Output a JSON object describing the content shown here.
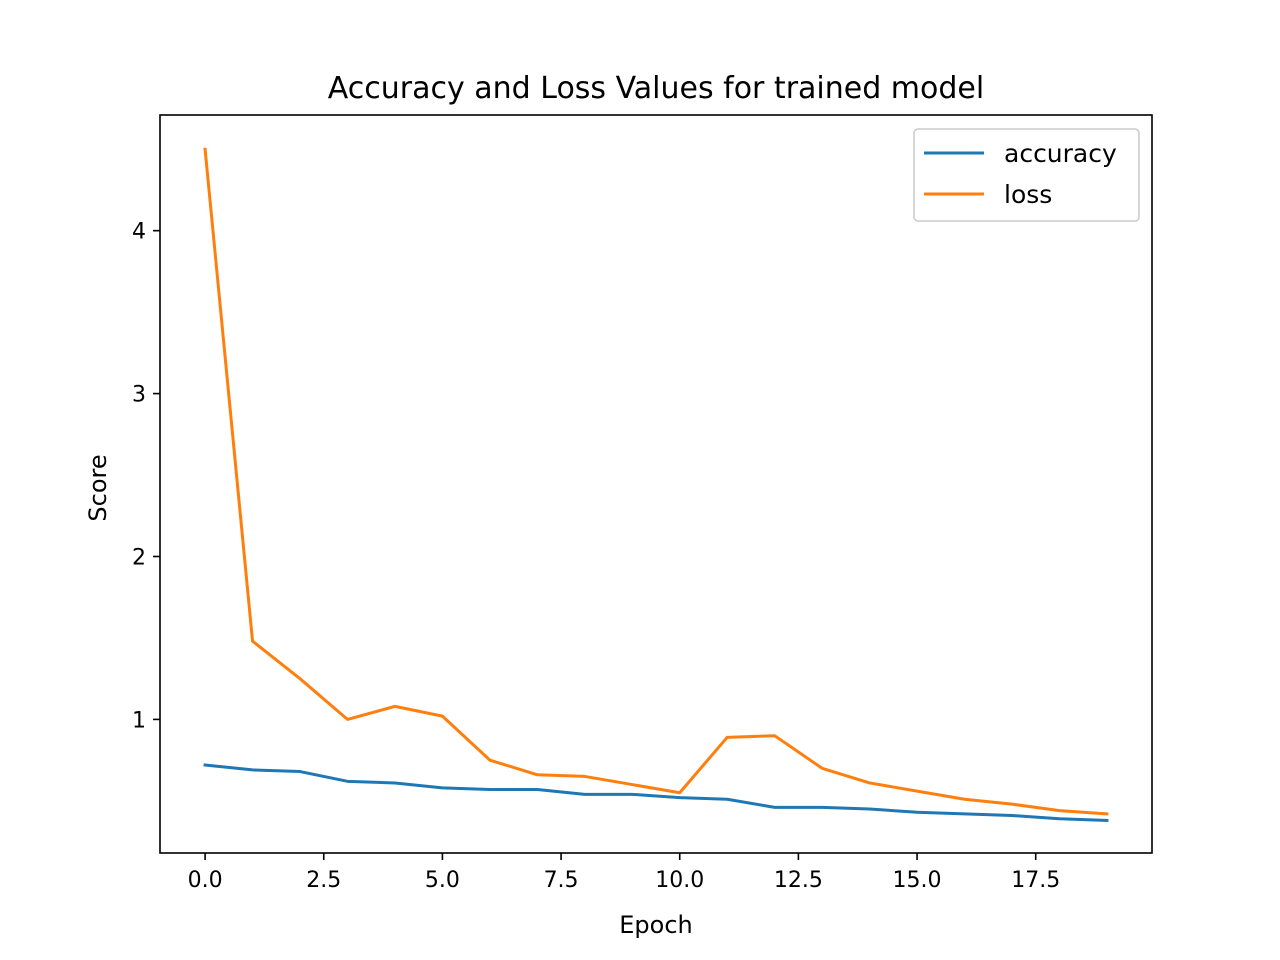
{
  "chart_data": {
    "type": "line",
    "title": "Accuracy and Loss Values for trained model",
    "xlabel": "Epoch",
    "ylabel": "Score",
    "x": [
      0,
      1,
      2,
      3,
      4,
      5,
      6,
      7,
      8,
      9,
      10,
      11,
      12,
      13,
      14,
      15,
      16,
      17,
      18,
      19
    ],
    "xlim": [
      -0.95,
      19.95
    ],
    "ylim": [
      0.18,
      4.71
    ],
    "x_ticks": [
      0.0,
      2.5,
      5.0,
      7.5,
      10.0,
      12.5,
      15.0,
      17.5
    ],
    "x_tick_labels": [
      "0.0",
      "2.5",
      "5.0",
      "7.5",
      "10.0",
      "12.5",
      "15.0",
      "17.5"
    ],
    "y_ticks": [
      1,
      2,
      3,
      4
    ],
    "y_tick_labels": [
      "1",
      "2",
      "3",
      "4"
    ],
    "grid": false,
    "legend_position": "top-right",
    "series": [
      {
        "name": "accuracy",
        "color": "#1f77b4",
        "values": [
          0.72,
          0.69,
          0.68,
          0.62,
          0.61,
          0.58,
          0.57,
          0.57,
          0.54,
          0.54,
          0.52,
          0.51,
          0.46,
          0.46,
          0.45,
          0.43,
          0.42,
          0.41,
          0.39,
          0.38
        ]
      },
      {
        "name": "loss",
        "color": "#ff7f0e",
        "values": [
          4.5,
          1.48,
          1.25,
          1.0,
          1.08,
          1.02,
          0.75,
          0.66,
          0.65,
          0.6,
          0.55,
          0.89,
          0.9,
          0.7,
          0.61,
          0.56,
          0.51,
          0.48,
          0.44,
          0.42
        ]
      }
    ]
  }
}
